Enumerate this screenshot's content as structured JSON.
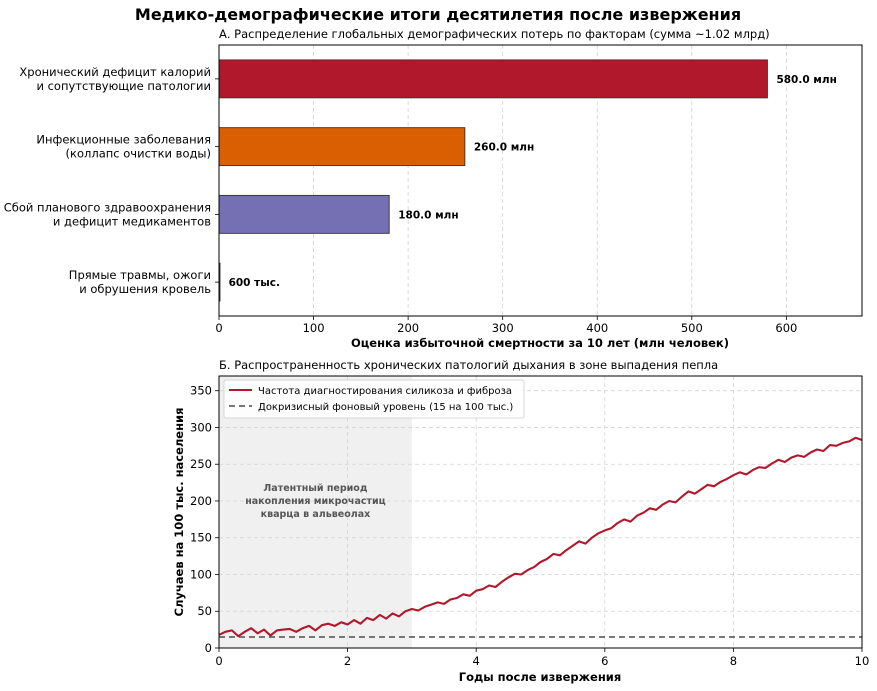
{
  "figure": {
    "title": "Медико-демографические итоги десятилетия после извержения"
  },
  "chart_data": [
    {
      "type": "bar",
      "orientation": "horizontal",
      "title": "А. Распределение глобальных демографических потерь по факторам (сумма ~1.02 млрд)",
      "xlabel": "Оценка избыточной смертности за 10 лет (млн человек)",
      "ylabel": "",
      "xlim": [
        0,
        680
      ],
      "xticks": [
        0,
        100,
        200,
        300,
        400,
        500,
        600
      ],
      "grid": "x-dashed",
      "categories": [
        [
          "Хронический дефицит калорий",
          "и сопутствующие патологии"
        ],
        [
          "Инфекционные заболевания",
          "(коллапс очистки воды)"
        ],
        [
          "Сбой планового здравоохранения",
          "и дефицит медикаментов"
        ],
        [
          "Прямые травмы, ожоги",
          "и обрушения кровель"
        ]
      ],
      "values": [
        580,
        260,
        180,
        0.6
      ],
      "value_labels": [
        "580.0 млн",
        "260.0 млн",
        "180.0 млн",
        "600 тыс."
      ],
      "colors": [
        "#b2182b",
        "#d95f02",
        "#7570b3",
        "#4d4d4d"
      ]
    },
    {
      "type": "line",
      "title": "Б. Распространенность хронических патологий дыхания в зоне выпадения пепла",
      "xlabel": "Годы после извержения",
      "ylabel": "Случаев на 100 тыс. населения",
      "xlim": [
        0,
        10
      ],
      "ylim": [
        0,
        370
      ],
      "xticks": [
        0,
        2,
        4,
        6,
        8,
        10
      ],
      "yticks": [
        0,
        50,
        100,
        150,
        200,
        250,
        300,
        350
      ],
      "grid": "dashed",
      "legend_position": "upper-left",
      "shaded_region": {
        "x": [
          0,
          3
        ],
        "color": "#f0f0f0",
        "label": [
          "Латентный период",
          "накопления микрочастиц",
          "кварца в альвеолах"
        ]
      },
      "series": [
        {
          "name": "Частота диагностирования силикоза и фиброза",
          "color": "#b2182b",
          "style": "solid",
          "x": [
            0,
            0.1,
            0.2,
            0.3,
            0.4,
            0.5,
            0.6,
            0.7,
            0.8,
            0.9,
            1.0,
            1.1,
            1.2,
            1.3,
            1.4,
            1.5,
            1.6,
            1.7,
            1.8,
            1.9,
            2.0,
            2.1,
            2.2,
            2.3,
            2.4,
            2.5,
            2.6,
            2.7,
            2.8,
            2.9,
            3.0,
            3.1,
            3.2,
            3.3,
            3.4,
            3.5,
            3.6,
            3.7,
            3.8,
            3.9,
            4.0,
            4.1,
            4.2,
            4.3,
            4.4,
            4.5,
            4.6,
            4.7,
            4.8,
            4.9,
            5.0,
            5.1,
            5.2,
            5.3,
            5.4,
            5.5,
            5.6,
            5.7,
            5.8,
            5.9,
            6.0,
            6.1,
            6.2,
            6.3,
            6.4,
            6.5,
            6.6,
            6.7,
            6.8,
            6.9,
            7.0,
            7.1,
            7.2,
            7.3,
            7.4,
            7.5,
            7.6,
            7.7,
            7.8,
            7.9,
            8.0,
            8.1,
            8.2,
            8.3,
            8.4,
            8.5,
            8.6,
            8.7,
            8.8,
            8.9,
            9.0,
            9.1,
            9.2,
            9.3,
            9.4,
            9.5,
            9.6,
            9.7,
            9.8,
            9.9,
            10.0
          ],
          "y": [
            18,
            22,
            24,
            16,
            22,
            27,
            20,
            25,
            17,
            24,
            25,
            26,
            22,
            27,
            30,
            24,
            31,
            33,
            30,
            35,
            32,
            38,
            33,
            41,
            38,
            45,
            40,
            47,
            43,
            50,
            53,
            51,
            56,
            59,
            62,
            60,
            66,
            68,
            73,
            71,
            78,
            80,
            85,
            83,
            90,
            96,
            101,
            100,
            106,
            110,
            117,
            121,
            128,
            126,
            133,
            139,
            145,
            142,
            150,
            156,
            160,
            163,
            170,
            175,
            172,
            180,
            184,
            190,
            188,
            195,
            200,
            198,
            206,
            213,
            210,
            216,
            222,
            220,
            226,
            230,
            235,
            239,
            236,
            242,
            246,
            245,
            251,
            256,
            253,
            259,
            262,
            260,
            266,
            270,
            268,
            276,
            275,
            279,
            281,
            286,
            283
          ]
        },
        {
          "name": "Докризисный фоновый уровень (15 на 100 тыс.)",
          "color": "#4d4d4d",
          "style": "dashed",
          "x": [
            0,
            10
          ],
          "y": [
            15,
            15
          ]
        }
      ]
    }
  ]
}
